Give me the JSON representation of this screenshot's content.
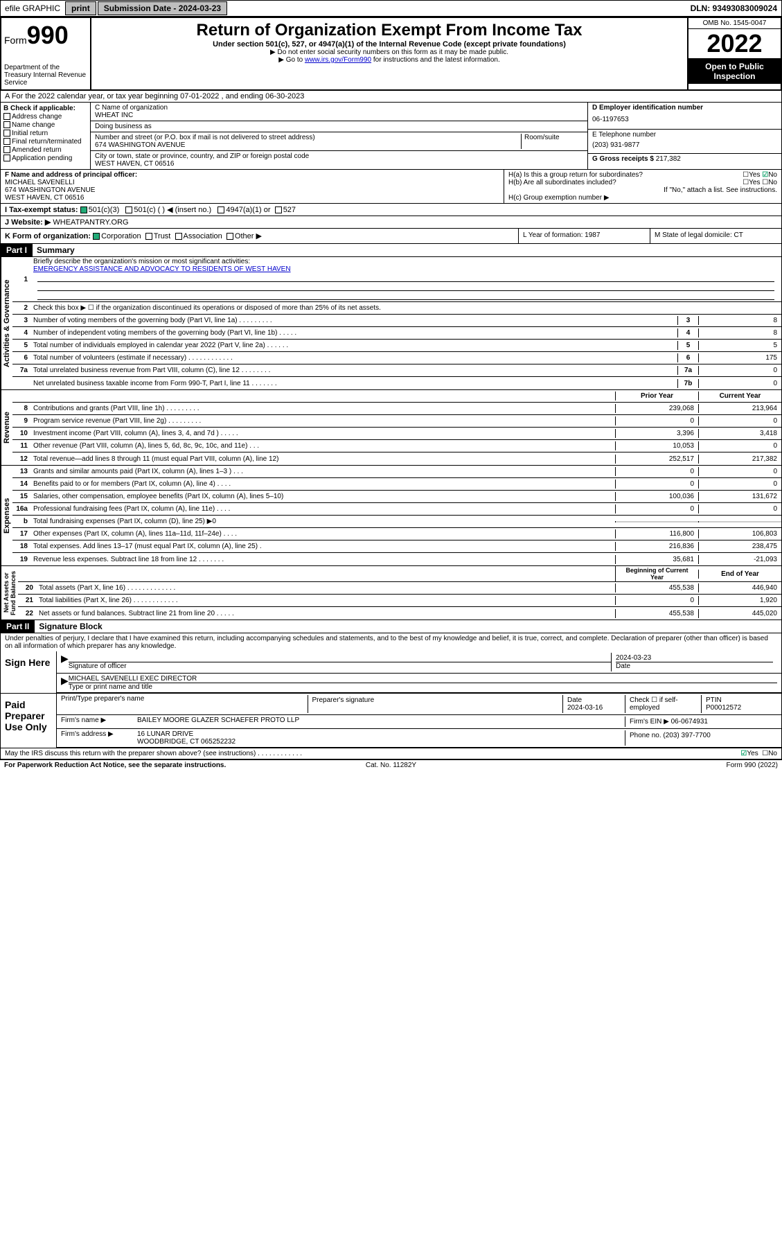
{
  "topbar": {
    "efile": "efile GRAPHIC",
    "print": "print",
    "subdate_label": "Submission Date - 2024-03-23",
    "dln": "DLN: 93493083009024"
  },
  "header": {
    "form_label": "Form",
    "form_num": "990",
    "dept": "Department of the Treasury Internal Revenue Service",
    "title": "Return of Organization Exempt From Income Tax",
    "subtitle": "Under section 501(c), 527, or 4947(a)(1) of the Internal Revenue Code (except private foundations)",
    "note1": "▶ Do not enter social security numbers on this form as it may be made public.",
    "note2_pre": "▶ Go to ",
    "note2_link": "www.irs.gov/Form990",
    "note2_post": " for instructions and the latest information.",
    "omb": "OMB No. 1545-0047",
    "year": "2022",
    "open": "Open to Public Inspection"
  },
  "row_a": "A For the 2022 calendar year, or tax year beginning 07-01-2022    , and ending 06-30-2023",
  "col_b": {
    "label": "B Check if applicable:",
    "items": [
      "Address change",
      "Name change",
      "Initial return",
      "Final return/terminated",
      "Amended return",
      "Application pending"
    ]
  },
  "col_c": {
    "name_label": "C Name of organization",
    "name": "WHEAT INC",
    "dba_label": "Doing business as",
    "addr_label": "Number and street (or P.O. box if mail is not delivered to street address)",
    "room_label": "Room/suite",
    "addr": "674 WASHINGTON AVENUE",
    "city_label": "City or town, state or province, country, and ZIP or foreign postal code",
    "city": "WEST HAVEN, CT  06516"
  },
  "col_d": {
    "ein_label": "D Employer identification number",
    "ein": "06-1197653",
    "phone_label": "E Telephone number",
    "phone": "(203) 931-9877",
    "gross_label": "G Gross receipts $",
    "gross": "217,382"
  },
  "col_f": {
    "label": "F Name and address of principal officer:",
    "name": "MICHAEL SAVENELLI",
    "addr1": "674 WASHINGTON AVENUE",
    "addr2": "WEST HAVEN, CT  06516"
  },
  "col_h": {
    "ha": "H(a)  Is this a group return for subordinates?",
    "hb": "H(b)  Are all subordinates included?",
    "hc_note": "If \"No,\" attach a list. See instructions.",
    "hc": "H(c)  Group exemption number ▶"
  },
  "row_i": {
    "label": "I    Tax-exempt status:",
    "opts": [
      "501(c)(3)",
      "501(c) (  ) ◀ (insert no.)",
      "4947(a)(1) or",
      "527"
    ]
  },
  "row_j": {
    "label": "J    Website: ▶",
    "val": "WHEATPANTRY.ORG"
  },
  "row_k": {
    "label": "K Form of organization:",
    "opts": [
      "Corporation",
      "Trust",
      "Association",
      "Other ▶"
    ]
  },
  "row_l": "L Year of formation: 1987",
  "row_m": "M State of legal domicile: CT",
  "part1": {
    "header": "Part I",
    "title": "Summary",
    "q1": "Briefly describe the organization's mission or most significant activities:",
    "mission": "EMERGENCY ASSISTANCE AND ADVOCACY TO RESIDENTS OF WEST HAVEN",
    "q2": "Check this box ▶ ☐  if the organization discontinued its operations or disposed of more than 25% of its net assets.",
    "rows_gov": [
      {
        "n": "3",
        "t": "Number of voting members of the governing body (Part VI, line 1a)  .   .   .   .   .   .   .   .   .",
        "k": "3",
        "v": "8"
      },
      {
        "n": "4",
        "t": "Number of independent voting members of the governing body (Part VI, line 1b)   .   .   .   .   .",
        "k": "4",
        "v": "8"
      },
      {
        "n": "5",
        "t": "Total number of individuals employed in calendar year 2022 (Part V, line 2a)   .   .   .   .   .   .",
        "k": "5",
        "v": "5"
      },
      {
        "n": "6",
        "t": "Total number of volunteers (estimate if necessary)   .   .   .   .   .   .   .   .   .   .   .   .",
        "k": "6",
        "v": "175"
      },
      {
        "n": "7a",
        "t": "Total unrelated business revenue from Part VIII, column (C), line 12   .   .   .   .   .   .   .   .",
        "k": "7a",
        "v": "0"
      },
      {
        "n": "",
        "t": "Net unrelated business taxable income from Form 990-T, Part I, line 11   .   .   .   .   .   .   .",
        "k": "7b",
        "v": "0"
      }
    ],
    "hdr_prior": "Prior Year",
    "hdr_curr": "Current Year",
    "rows_rev": [
      {
        "n": "8",
        "t": "Contributions and grants (Part VIII, line 1h)   .   .   .   .   .   .   .   .   .",
        "p": "239,068",
        "c": "213,964"
      },
      {
        "n": "9",
        "t": "Program service revenue (Part VIII, line 2g)   .   .   .   .   .   .   .   .   .",
        "p": "0",
        "c": "0"
      },
      {
        "n": "10",
        "t": "Investment income (Part VIII, column (A), lines 3, 4, and 7d )   .   .   .   .   .",
        "p": "3,396",
        "c": "3,418"
      },
      {
        "n": "11",
        "t": "Other revenue (Part VIII, column (A), lines 5, 6d, 8c, 9c, 10c, and 11e)    .   .   .",
        "p": "10,053",
        "c": "0"
      },
      {
        "n": "12",
        "t": "Total revenue—add lines 8 through 11 (must equal Part VIII, column (A), line 12)",
        "p": "252,517",
        "c": "217,382"
      }
    ],
    "rows_exp": [
      {
        "n": "13",
        "t": "Grants and similar amounts paid (Part IX, column (A), lines 1–3 )   .   .   .",
        "p": "0",
        "c": "0"
      },
      {
        "n": "14",
        "t": "Benefits paid to or for members (Part IX, column (A), line 4)   .   .   .   .",
        "p": "0",
        "c": "0"
      },
      {
        "n": "15",
        "t": "Salaries, other compensation, employee benefits (Part IX, column (A), lines 5–10)",
        "p": "100,036",
        "c": "131,672"
      },
      {
        "n": "16a",
        "t": "Professional fundraising fees (Part IX, column (A), line 11e)   .   .   .   .",
        "p": "0",
        "c": "0"
      },
      {
        "n": "b",
        "t": "Total fundraising expenses (Part IX, column (D), line 25) ▶0",
        "p": "",
        "c": ""
      },
      {
        "n": "17",
        "t": "Other expenses (Part IX, column (A), lines 11a–11d, 11f–24e)   .   .   .   .",
        "p": "116,800",
        "c": "106,803"
      },
      {
        "n": "18",
        "t": "Total expenses. Add lines 13–17 (must equal Part IX, column (A), line 25)   .",
        "p": "216,836",
        "c": "238,475"
      },
      {
        "n": "19",
        "t": "Revenue less expenses. Subtract line 18 from line 12  .   .   .   .   .   .   .",
        "p": "35,681",
        "c": "-21,093"
      }
    ],
    "hdr_beg": "Beginning of Current Year",
    "hdr_end": "End of Year",
    "rows_net": [
      {
        "n": "20",
        "t": "Total assets (Part X, line 16)   .   .   .   .   .   .   .   .   .   .   .   .   .",
        "p": "455,538",
        "c": "446,940"
      },
      {
        "n": "21",
        "t": "Total liabilities (Part X, line 26)   .   .   .   .   .   .   .   .   .   .   .   .",
        "p": "0",
        "c": "1,920"
      },
      {
        "n": "22",
        "t": "Net assets or fund balances. Subtract line 21 from line 20   .   .   .   .   .",
        "p": "455,538",
        "c": "445,020"
      }
    ]
  },
  "part2": {
    "header": "Part II",
    "title": "Signature Block",
    "decl": "Under penalties of perjury, I declare that I have examined this return, including accompanying schedules and statements, and to the best of my knowledge and belief, it is true, correct, and complete. Declaration of preparer (other than officer) is based on all information of which preparer has any knowledge.",
    "sign_here": "Sign Here",
    "sig_officer": "Signature of officer",
    "sig_date": "2024-03-23",
    "date_label": "Date",
    "officer_name": "MICHAEL SAVENELLI  EXEC DIRECTOR",
    "type_name": "Type or print name and title",
    "paid": "Paid Preparer Use Only",
    "prep_name_label": "Print/Type preparer's name",
    "prep_sig_label": "Preparer's signature",
    "prep_date_label": "Date",
    "prep_date": "2024-03-16",
    "check_label": "Check ☐ if self-employed",
    "ptin_label": "PTIN",
    "ptin": "P00012572",
    "firm_name_label": "Firm's name    ▶",
    "firm_name": "BAILEY MOORE GLAZER SCHAEFER PROTO LLP",
    "firm_ein_label": "Firm's EIN ▶",
    "firm_ein": "06-0674931",
    "firm_addr_label": "Firm's address ▶",
    "firm_addr1": "16 LUNAR DRIVE",
    "firm_addr2": "WOODBRIDGE, CT  065252232",
    "firm_phone_label": "Phone no.",
    "firm_phone": "(203) 397-7700",
    "discuss": "May the IRS discuss this return with the preparer shown above? (see instructions)   .   .   .   .   .   .   .   .   .   .   .   ."
  },
  "footer": {
    "left": "For Paperwork Reduction Act Notice, see the separate instructions.",
    "mid": "Cat. No. 11282Y",
    "right": "Form 990 (2022)"
  }
}
